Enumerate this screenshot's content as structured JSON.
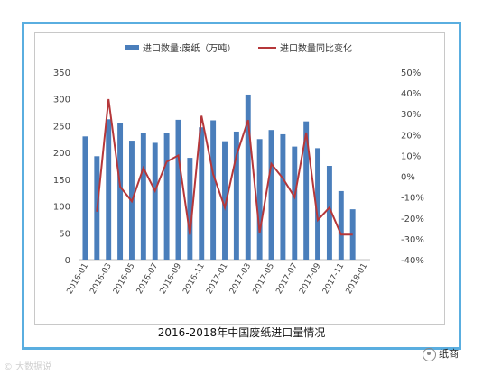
{
  "caption": "2016-2018年中国废纸进口量情况",
  "watermark_left": "© 大数据说",
  "watermark_right": "纸商",
  "colors": {
    "bar": "#4a7ebb",
    "line": "#b5373a",
    "frame": "#5aaee0"
  },
  "chart_data": {
    "type": "bar-line",
    "title": "",
    "categories": [
      "2016-01",
      "2016-02",
      "2016-03",
      "2016-04",
      "2016-05",
      "2016-06",
      "2016-07",
      "2016-08",
      "2016-09",
      "2016-10",
      "2016-11",
      "2016-12",
      "2017-01",
      "2017-02",
      "2017-03",
      "2017-04",
      "2017-05",
      "2017-06",
      "2017-07",
      "2017-08",
      "2017-09",
      "2017-10",
      "2017-11",
      "2017-12",
      "2018-01"
    ],
    "tick_labels": [
      "2016-01",
      "2016-03",
      "2016-05",
      "2016-07",
      "2016-09",
      "2016-11",
      "2017-01",
      "2017-03",
      "2017-05",
      "2017-07",
      "2017-09",
      "2017-11",
      "2018-01"
    ],
    "series": [
      {
        "name": "进口数量:废纸（万吨）",
        "type": "bar",
        "axis": "left",
        "values": [
          230,
          193,
          262,
          255,
          222,
          236,
          218,
          236,
          261,
          190,
          247,
          260,
          221,
          239,
          308,
          225,
          242,
          234,
          211,
          258,
          208,
          175,
          128,
          94,
          null
        ]
      },
      {
        "name": "进口数量同比变化",
        "type": "line",
        "axis": "right",
        "values": [
          null,
          -17,
          37,
          -5,
          -12,
          4,
          -7,
          7,
          10,
          -28,
          29,
          1,
          -15,
          10,
          27,
          -27,
          6,
          -1,
          -10,
          21,
          -21,
          -15,
          -28,
          -28,
          null
        ]
      }
    ],
    "y_left": {
      "min": 0,
      "max": 350,
      "ticks": [
        "350",
        "300",
        "250",
        "200",
        "150",
        "100",
        "50",
        "0"
      ]
    },
    "y_right": {
      "min": -40,
      "max": 50,
      "ticks": [
        "50%",
        "40%",
        "30%",
        "20%",
        "10%",
        "0%",
        "-10%",
        "-20%",
        "-30%",
        "-40%"
      ]
    },
    "legend_position": "top",
    "grid": false
  }
}
